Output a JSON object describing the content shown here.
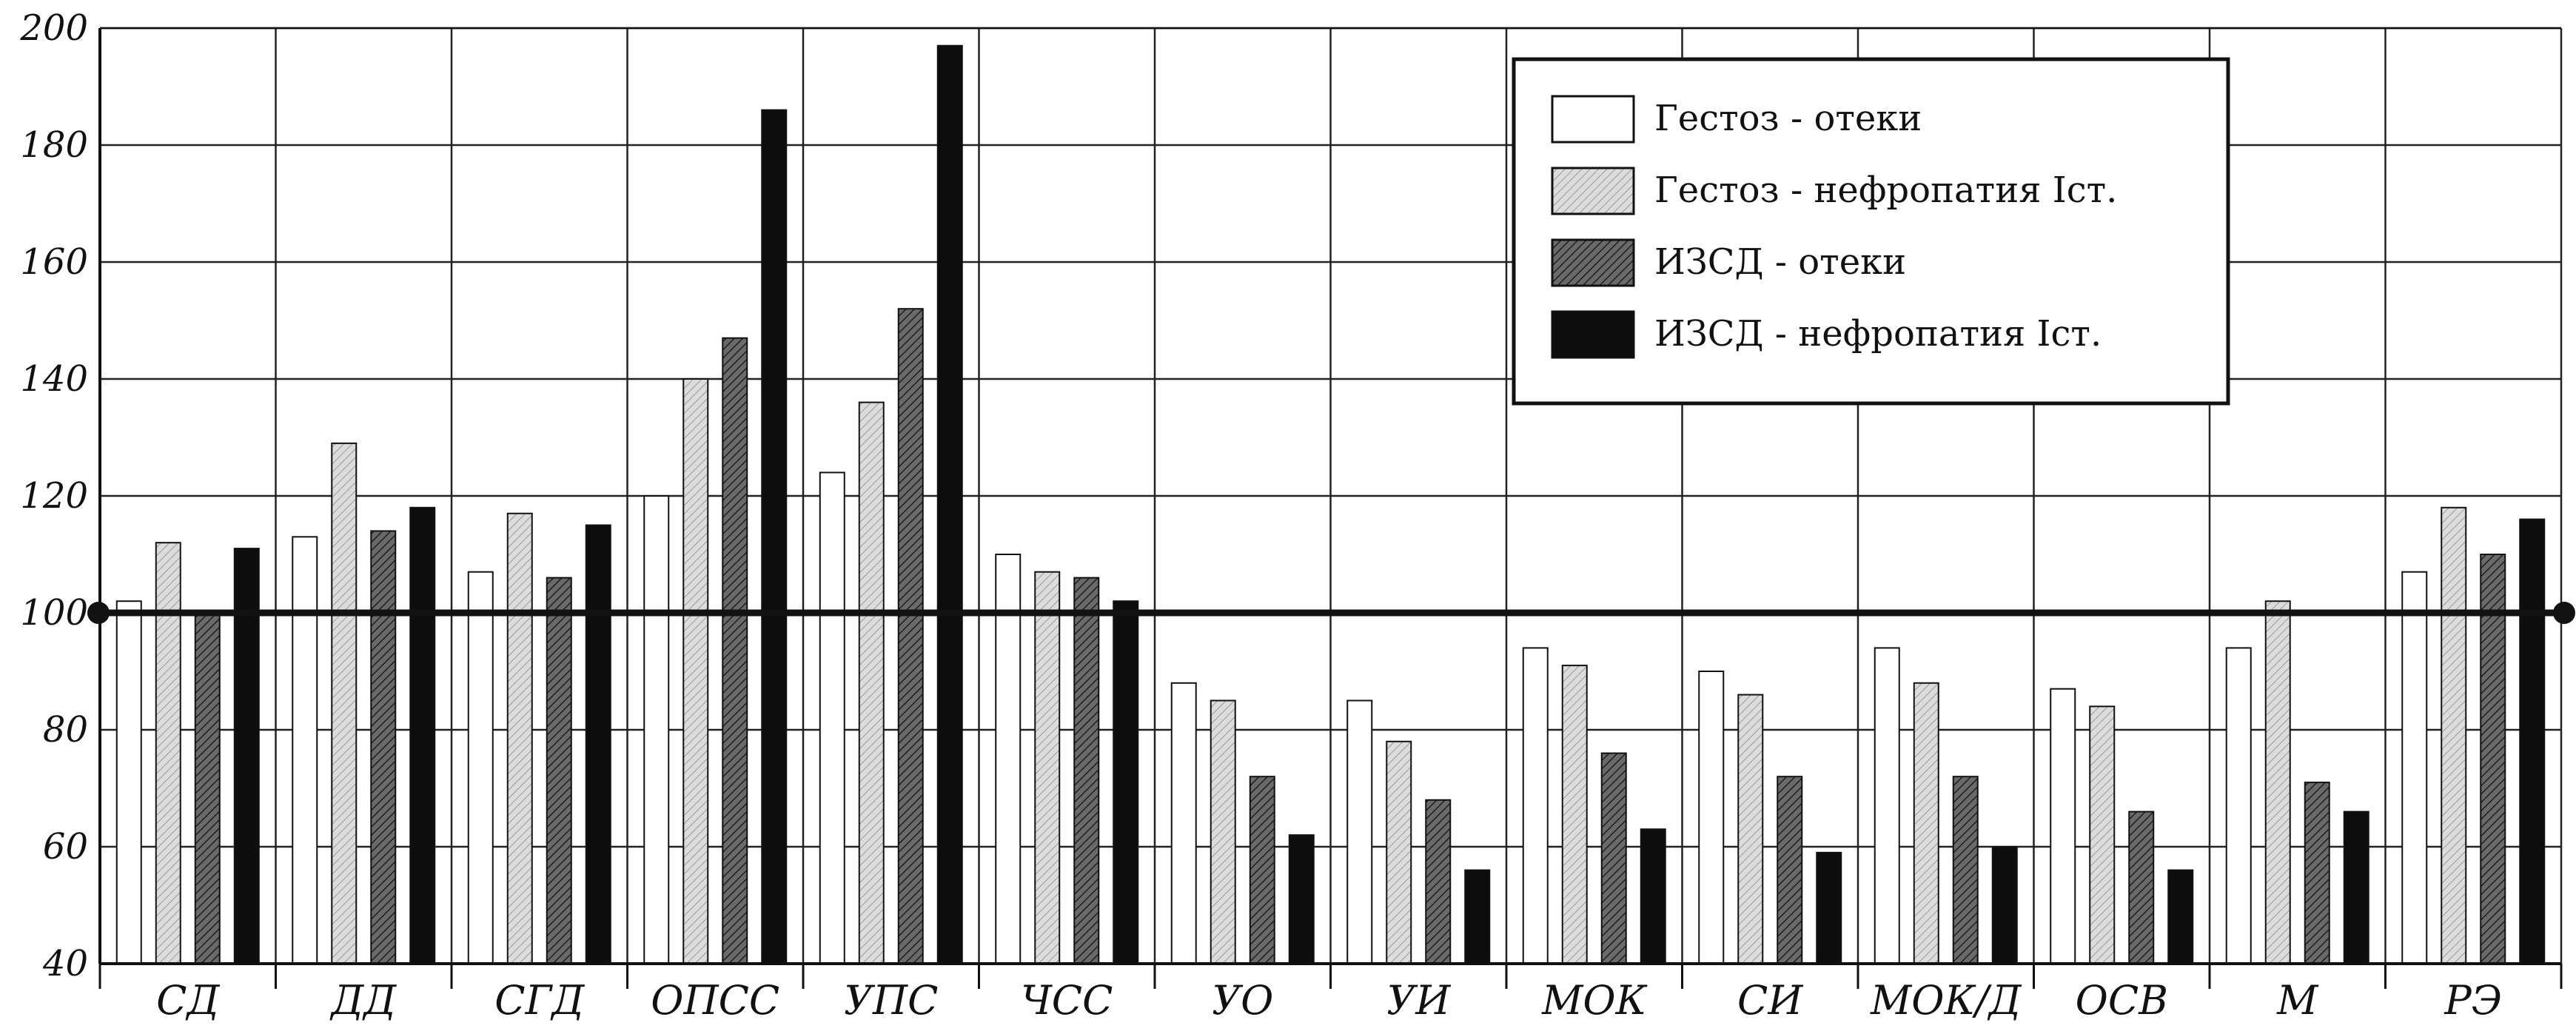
{
  "chart_data": {
    "type": "bar",
    "title": "",
    "xlabel": "",
    "ylabel": "",
    "ylim": [
      40,
      200
    ],
    "yticks": [
      40,
      60,
      80,
      100,
      120,
      140,
      160,
      180,
      200
    ],
    "grid": true,
    "reference_line": 100,
    "legend_position": "top-right",
    "categories": [
      "СД",
      "ДД",
      "СГД",
      "ОПСС",
      "УПС",
      "ЧСС",
      "УО",
      "УИ",
      "МОК",
      "СИ",
      "МОК/Д",
      "ОСВ",
      "М",
      "РЭ"
    ],
    "series": [
      {
        "name": "Гестоз - отеки",
        "color": "#ffffff",
        "pattern": "none",
        "values": [
          102,
          113,
          107,
          120,
          124,
          110,
          88,
          85,
          94,
          90,
          94,
          87,
          94,
          107
        ]
      },
      {
        "name": "Гестоз - нефропатия Iст.",
        "color": "#d9d9d9",
        "pattern": "light-hatch",
        "values": [
          112,
          129,
          117,
          140,
          136,
          107,
          85,
          78,
          91,
          86,
          88,
          84,
          102,
          118
        ]
      },
      {
        "name": "ИЗСД - отеки",
        "color": "#5a5a5a",
        "pattern": "dark-hatch",
        "values": [
          100,
          114,
          106,
          147,
          152,
          106,
          72,
          68,
          76,
          72,
          72,
          66,
          71,
          110
        ]
      },
      {
        "name": "ИЗСД - нефропатия Iст.",
        "color": "#0d0d0d",
        "pattern": "solid",
        "values": [
          111,
          118,
          115,
          186,
          197,
          102,
          62,
          56,
          63,
          59,
          60,
          56,
          66,
          116
        ]
      }
    ]
  }
}
